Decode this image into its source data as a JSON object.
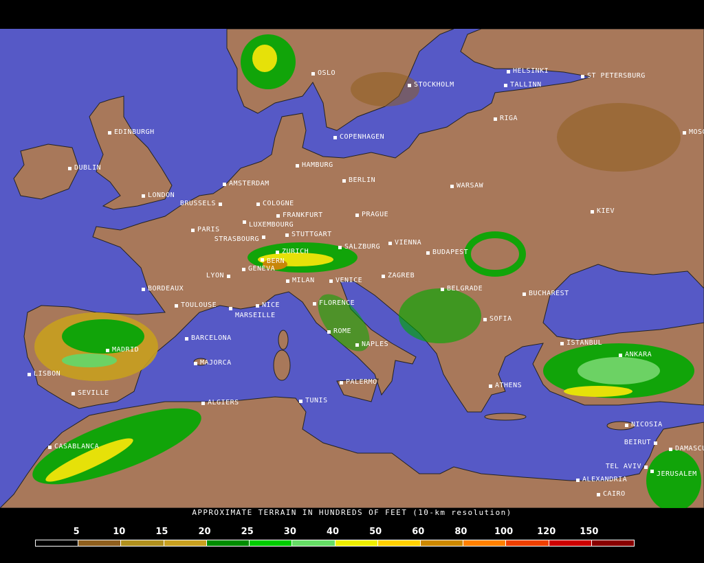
{
  "map": {
    "colors": {
      "ocean": "#5659c6",
      "land": "#a8785a",
      "lowland": "#8f5f1e",
      "border": "#222222"
    },
    "cities": [
      {
        "name": "OSLO"
      },
      {
        "name": "STOCKHOLM"
      },
      {
        "name": "HELSINKI"
      },
      {
        "name": "TALLINN"
      },
      {
        "name": "ST PETERSBURG"
      },
      {
        "name": "RIGA"
      },
      {
        "name": "MOSCOW"
      },
      {
        "name": "EDINBURGH"
      },
      {
        "name": "COPENHAGEN"
      },
      {
        "name": "DUBLIN"
      },
      {
        "name": "HAMBURG"
      },
      {
        "name": "BERLIN"
      },
      {
        "name": "AMSTERDAM"
      },
      {
        "name": "WARSAW"
      },
      {
        "name": "LONDON"
      },
      {
        "name": "BRUSSELS"
      },
      {
        "name": "COLOGNE"
      },
      {
        "name": "KIEV"
      },
      {
        "name": "FRANKFURT"
      },
      {
        "name": "PRAGUE"
      },
      {
        "name": "LUXEMBOURG"
      },
      {
        "name": "PARIS"
      },
      {
        "name": "STRASBOURG"
      },
      {
        "name": "STUTTGART"
      },
      {
        "name": "VIENNA"
      },
      {
        "name": "SALZBURG"
      },
      {
        "name": "BUDAPEST"
      },
      {
        "name": "ZURICH"
      },
      {
        "name": "BERN"
      },
      {
        "name": "GENEVA"
      },
      {
        "name": "LYON"
      },
      {
        "name": "BORDEAUX"
      },
      {
        "name": "MILAN"
      },
      {
        "name": "VENICE"
      },
      {
        "name": "ZAGREB"
      },
      {
        "name": "BELGRADE"
      },
      {
        "name": "BUCHAREST"
      },
      {
        "name": "TOULOUSE"
      },
      {
        "name": "MARSEILLE"
      },
      {
        "name": "NICE"
      },
      {
        "name": "FLORENCE"
      },
      {
        "name": "SOFIA"
      },
      {
        "name": "ROME"
      },
      {
        "name": "BARCELONA"
      },
      {
        "name": "ISTANBUL"
      },
      {
        "name": "NAPLES"
      },
      {
        "name": "MADRID"
      },
      {
        "name": "ANKARA"
      },
      {
        "name": "MAJORCA"
      },
      {
        "name": "LISBON"
      },
      {
        "name": "PALERMO"
      },
      {
        "name": "ATHENS"
      },
      {
        "name": "SEVILLE"
      },
      {
        "name": "ALGIERS"
      },
      {
        "name": "TUNIS"
      },
      {
        "name": "NICOSIA"
      },
      {
        "name": "CASABLANCA"
      },
      {
        "name": "BEIRUT"
      },
      {
        "name": "DAMASCUS"
      },
      {
        "name": "TEL AVIV"
      },
      {
        "name": "JERUSALEM"
      },
      {
        "name": "ALEXANDRIA"
      },
      {
        "name": "CAIRO"
      }
    ]
  },
  "legend": {
    "caption": "APPROXIMATE TERRAIN IN HUNDREDS OF FEET (10-km resolution)",
    "tick_labels": [
      "5",
      "10",
      "15",
      "20",
      "25",
      "30",
      "40",
      "50",
      "60",
      "80",
      "100",
      "120",
      "150"
    ],
    "swatches": [
      "#000000",
      "#8f5f1e",
      "#b0901e",
      "#c8a020",
      "#008c00",
      "#00cc00",
      "#66dd66",
      "#eeee00",
      "#ffd000",
      "#cc8800",
      "#ff8000",
      "#ee4000",
      "#cc0000",
      "#880000"
    ]
  }
}
